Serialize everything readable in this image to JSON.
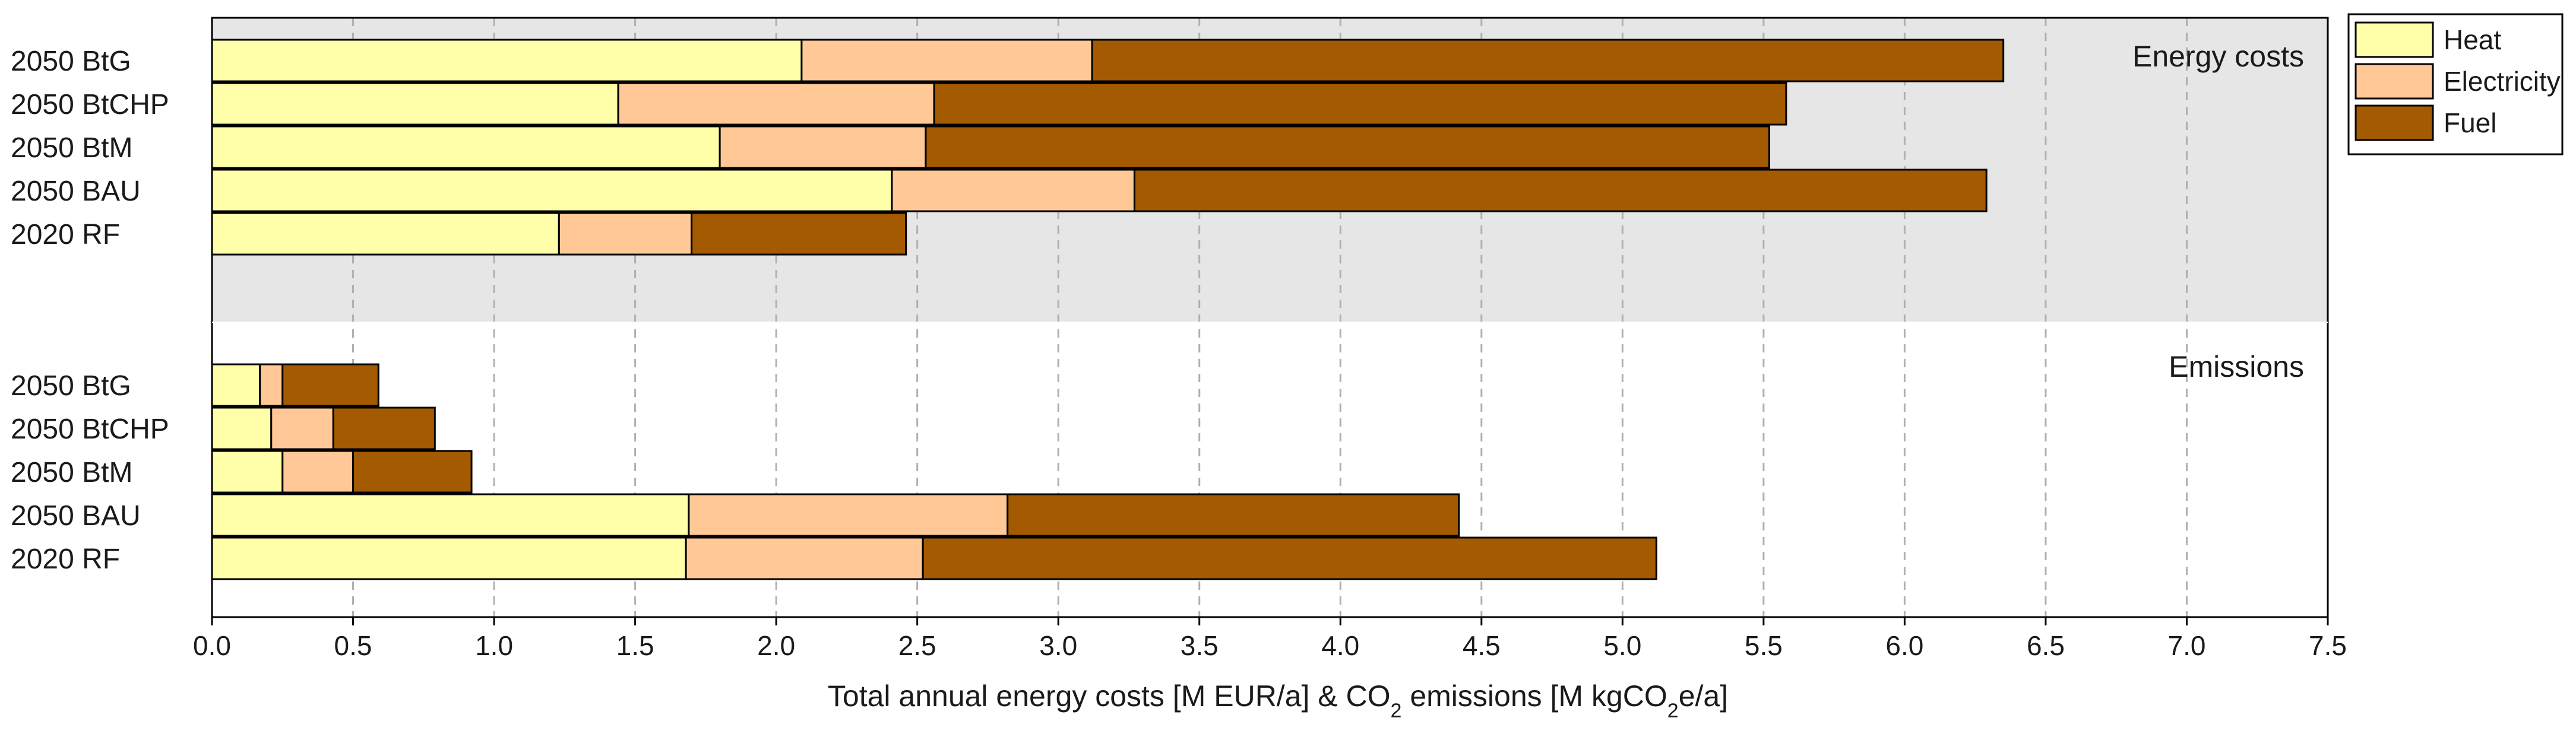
{
  "chart_data": {
    "type": "bar",
    "orientation": "horizontal",
    "stacked": true,
    "xlabel_parts": {
      "before": "Total annual energy costs [M EUR/a] & CO",
      "sub1": "2",
      "middle": " emissions [M kgCO",
      "sub2": "2",
      "after": "e/a]"
    },
    "xlim": [
      0,
      7.5
    ],
    "xticks": [
      "0.0",
      "0.5",
      "1.0",
      "1.5",
      "2.0",
      "2.5",
      "3.0",
      "3.5",
      "4.0",
      "4.5",
      "5.0",
      "5.5",
      "6.0",
      "6.5",
      "7.0",
      "7.5"
    ],
    "grid": "vertical dashed",
    "legend_position": "outside-right-top",
    "series": [
      {
        "name": "Heat",
        "color": "#ffffaa"
      },
      {
        "name": "Electricity",
        "color": "#ffc896"
      },
      {
        "name": "Fuel",
        "color": "#a35a00"
      }
    ],
    "panels": [
      {
        "label": "Energy costs",
        "background": "#e6e6e6",
        "categories": [
          "2050 BtG",
          "2050 BtCHP",
          "2050 BtM",
          "2050 BAU",
          "2020 RF"
        ],
        "values": {
          "Heat": [
            2.09,
            1.44,
            1.8,
            2.41,
            1.23
          ],
          "Electricity": [
            1.03,
            1.12,
            0.73,
            0.86,
            0.47
          ],
          "Fuel": [
            3.23,
            3.02,
            2.99,
            3.02,
            0.76
          ]
        }
      },
      {
        "label": "Emissions",
        "background": "#ffffff",
        "categories": [
          "2050 BtG",
          "2050 BtCHP",
          "2050 BtM",
          "2050 BAU",
          "2020 RF"
        ],
        "values": {
          "Heat": [
            0.17,
            0.21,
            0.25,
            1.69,
            1.68
          ],
          "Electricity": [
            0.08,
            0.22,
            0.25,
            1.13,
            0.84
          ],
          "Fuel": [
            0.34,
            0.36,
            0.42,
            1.6,
            2.6
          ]
        }
      }
    ]
  }
}
